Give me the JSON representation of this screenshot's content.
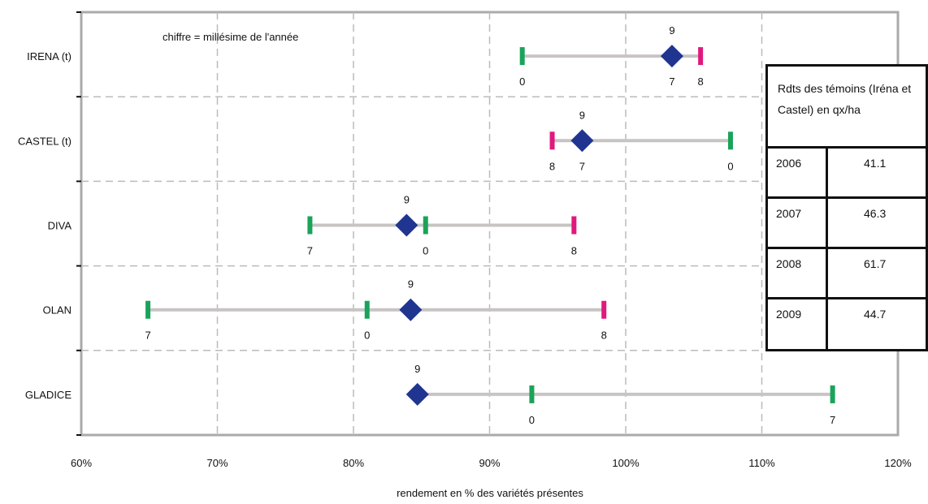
{
  "chart_data": {
    "type": "scatter",
    "note": "chiffre = millésime de l'année",
    "xlabel": "rendement en % des variétés présentes",
    "xlim": [
      60,
      120
    ],
    "xticks": [
      "60%",
      "70%",
      "80%",
      "90%",
      "100%",
      "110%",
      "120%"
    ],
    "grid": true,
    "categories": [
      "IRENA (t)",
      "CASTEL (t)",
      "DIVA",
      "OLAN",
      "GLADICE"
    ],
    "rows": [
      {
        "name": "IRENA (t)",
        "mean": 103.4,
        "mean_label": "9",
        "points": [
          {
            "x": 92.4,
            "label": "0",
            "color": "#1aa35a"
          },
          {
            "x": 103.4,
            "label": "7",
            "color": "#1aa35a"
          },
          {
            "x": 105.5,
            "label": "8",
            "color": "#e0197d"
          }
        ]
      },
      {
        "name": "CASTEL (t)",
        "mean": 96.8,
        "mean_label": "9",
        "points": [
          {
            "x": 94.6,
            "label": "8",
            "color": "#e0197d"
          },
          {
            "x": 96.8,
            "label": "7",
            "color": "#1aa35a"
          },
          {
            "x": 107.7,
            "label": "0",
            "color": "#1aa35a"
          }
        ]
      },
      {
        "name": "DIVA",
        "mean": 83.9,
        "mean_label": "9",
        "points": [
          {
            "x": 76.8,
            "label": "7",
            "color": "#1aa35a"
          },
          {
            "x": 85.3,
            "label": "0",
            "color": "#1aa35a"
          },
          {
            "x": 96.2,
            "label": "8",
            "color": "#e0197d"
          }
        ]
      },
      {
        "name": "OLAN",
        "mean": 84.2,
        "mean_label": "9",
        "points": [
          {
            "x": 64.9,
            "label": "7",
            "color": "#1aa35a"
          },
          {
            "x": 81.0,
            "label": "0",
            "color": "#1aa35a"
          },
          {
            "x": 98.4,
            "label": "8",
            "color": "#e0197d"
          }
        ]
      },
      {
        "name": "GLADICE",
        "mean": 84.7,
        "mean_label": "9",
        "points": [
          {
            "x": 93.1,
            "label": "0",
            "color": "#1aa35a"
          },
          {
            "x": 115.2,
            "label": "7",
            "color": "#1aa35a"
          }
        ]
      }
    ],
    "colors": {
      "mean": "#1f3590",
      "range_line": "#c8c4c4",
      "gridline": "#bbbbbb",
      "frame": "#aaaaaa"
    }
  },
  "table": {
    "title": "Rdts des témoins (Iréna et Castel) en qx/ha",
    "rows": [
      {
        "year": "2006",
        "value": "41.1"
      },
      {
        "year": "2007",
        "value": "46.3"
      },
      {
        "year": "2008",
        "value": "61.7"
      },
      {
        "year": "2009",
        "value": "44.7"
      }
    ]
  }
}
